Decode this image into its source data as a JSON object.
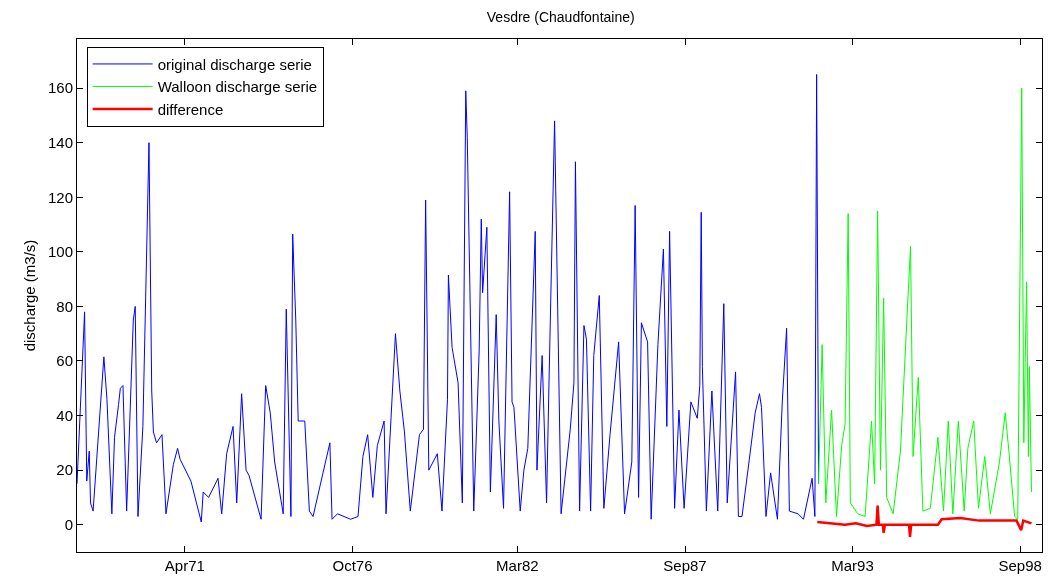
{
  "chart_data": {
    "type": "line",
    "title": "Vesdre (Chaudfontaine)",
    "ylabel": "discharge (m3/s)",
    "xlim": [
      "1967-09-16",
      "1999-05-21"
    ],
    "xticks": [
      {
        "value": "1971-04-01",
        "label": "Apr71"
      },
      {
        "value": "1976-10-01",
        "label": "Oct76"
      },
      {
        "value": "1982-03-01",
        "label": "Mar82"
      },
      {
        "value": "1987-09-01",
        "label": "Sep87"
      },
      {
        "value": "1993-03-01",
        "label": "Mar93"
      },
      {
        "value": "1998-09-01",
        "label": "Sep98"
      }
    ],
    "ylim": [
      -10,
      178
    ],
    "yticks": [
      0,
      20,
      40,
      60,
      80,
      100,
      120,
      140,
      160
    ],
    "legend": "top left",
    "series": [
      {
        "name": "original discharge serie",
        "color": "#0000ff",
        "x": [
          "1967-09-16",
          "1967-12-16",
          "1968-01-11",
          "1968-02-10",
          "1968-02-25",
          "1968-03-27",
          "1968-08-03",
          "1968-09-09",
          "1968-11-07",
          "1968-12-09",
          "1969-01-26",
          "1969-02-17",
          "1969-03-20",
          "1969-05-03",
          "1969-07-22",
          "1969-08-14",
          "1969-09-16",
          "1969-11-14",
          "1970-01-26",
          "1970-02-28",
          "1970-03-20",
          "1970-04-26",
          "1970-07-01",
          "1970-08-18",
          "1970-11-14",
          "1971-01-04",
          "1971-02-03",
          "1971-06-13",
          "1971-10-15",
          "1971-11-07",
          "1972-01-11",
          "1972-05-03",
          "1972-06-16",
          "1972-08-14",
          "1972-10-30",
          "1972-12-13",
          "1973-02-10",
          "1973-04-04",
          "1973-05-10",
          "1973-10-01",
          "1973-11-25",
          "1974-01-19",
          "1974-03-13",
          "1974-06-23",
          "1974-07-30",
          "1974-09-24",
          "1974-10-15",
          "1974-11-21",
          "1974-12-20",
          "1975-03-09",
          "1975-05-03",
          "1975-06-16",
          "1976-01-04",
          "1976-01-30",
          "1976-04-04",
          "1976-09-09",
          "1976-12-06",
          "1977-02-03",
          "1977-04-01",
          "1977-06-02",
          "1977-07-26",
          "1977-10-15",
          "1977-11-07",
          "1978-02-28",
          "1978-04-22",
          "1978-06-16",
          "1978-08-25",
          "1978-12-13",
          "1979-01-30",
          "1979-02-25",
          "1979-04-04",
          "1979-07-15",
          "1979-09-09",
          "1979-11-14",
          "1979-11-25",
          "1980-01-08",
          "1980-03-20",
          "1980-05-10",
          "1980-06-20",
          "1980-07-08",
          "1980-09-24",
          "1980-11-28",
          "1980-12-23",
          "1981-01-08",
          "1981-02-28",
          "1981-04-11",
          "1981-06-20",
          "1981-07-22",
          "1981-09-16",
          "1981-11-28",
          "1981-12-27",
          "1982-01-19",
          "1982-04-04",
          "1982-05-18",
          "1982-07-04",
          "1982-10-01",
          "1982-10-22",
          "1982-12-23",
          "1983-02-14",
          "1983-03-13",
          "1983-05-21",
          "1983-08-07",
          "1983-11-25",
          "1984-01-08",
          "1984-01-26",
          "1984-03-16",
          "1984-05-07",
          "1984-06-06",
          "1984-07-26",
          "1984-09-02",
          "1984-11-07",
          "1985-01-01",
          "1985-03-16",
          "1985-06-27",
          "1985-09-06",
          "1985-12-02",
          "1986-01-11",
          "1986-02-21",
          "1986-03-27",
          "1986-06-09",
          "1986-07-22",
          "1986-10-11",
          "1986-12-16",
          "1987-01-26",
          "1987-02-28",
          "1987-03-13",
          "1987-04-29",
          "1987-06-20",
          "1987-08-21",
          "1987-11-10",
          "1988-01-26",
          "1988-02-25",
          "1988-03-13",
          "1988-03-27",
          "1988-05-14",
          "1988-07-19",
          "1988-09-27",
          "1988-12-09",
          "1989-01-19",
          "1989-04-29",
          "1989-06-02",
          "1989-07-15",
          "1989-10-11",
          "1989-12-20",
          "1990-02-10",
          "1990-03-06",
          "1990-04-29",
          "1990-06-23",
          "1990-09-13",
          "1990-11-10",
          "1991-01-01",
          "1991-02-03",
          "1991-05-18",
          "1991-07-22",
          "1991-11-03",
          "1991-12-06",
          "1991-12-27",
          "1992-01-19"
        ],
        "values": [
          15,
          78,
          16,
          27,
          8,
          5,
          61.5,
          46,
          4,
          32,
          44,
          50,
          51,
          5,
          75,
          80,
          3,
          36,
          140,
          49,
          34,
          30,
          33,
          4,
          22,
          28,
          24,
          16,
          1,
          12,
          10,
          17,
          4,
          26,
          36,
          8,
          48,
          20,
          18,
          2,
          51,
          41,
          23,
          4,
          79,
          3,
          106.5,
          75,
          38,
          38,
          5,
          3,
          30,
          2,
          4,
          2,
          3,
          25,
          33,
          10,
          29,
          38,
          4,
          70,
          49,
          34,
          5,
          33,
          35,
          119,
          20,
          26,
          5,
          46,
          91.5,
          65,
          52,
          8,
          159,
          142,
          5,
          64,
          112,
          85,
          109,
          12,
          77,
          38,
          6,
          122,
          45,
          43,
          5,
          20,
          28,
          107.5,
          20,
          62,
          8,
          49,
          148,
          4,
          35,
          52,
          133,
          5,
          73,
          68,
          5,
          62,
          84,
          6,
          33,
          67,
          4,
          23,
          117,
          10,
          74,
          67,
          2,
          66,
          101,
          36,
          107.5,
          86,
          6,
          42,
          6,
          45,
          39,
          51,
          114.5,
          58,
          5,
          49,
          5,
          81,
          8,
          56,
          3,
          3,
          24,
          41,
          48,
          43,
          3,
          19,
          2,
          45,
          72,
          5,
          4,
          2,
          17,
          3,
          165,
          15
        ]
      },
      {
        "name": "Walloon discharge serie",
        "color": "#00ff00",
        "x": [
          "1992-01-19",
          "1992-03-02",
          "1992-04-15",
          "1992-06-23",
          "1992-08-21",
          "1992-10-22",
          "1992-12-02",
          "1993-01-08",
          "1993-02-03",
          "1993-05-03",
          "1993-07-30",
          "1993-10-15",
          "1993-11-21",
          "1993-12-27",
          "1994-01-30",
          "1994-03-09",
          "1994-04-15",
          "1994-07-01",
          "1994-09-27",
          "1994-12-27",
          "1995-01-26",
          "1995-02-25",
          "1995-04-29",
          "1995-06-23",
          "1995-09-20",
          "1995-12-20",
          "1996-02-25",
          "1996-04-22",
          "1996-06-16",
          "1996-08-21",
          "1996-10-30",
          "1996-12-13",
          "1997-02-21",
          "1997-04-19",
          "1997-07-04",
          "1997-09-09",
          "1997-12-27",
          "1998-03-06",
          "1998-04-19",
          "1998-06-27",
          "1998-08-03",
          "1998-09-20",
          "1998-10-15",
          "1998-11-17",
          "1998-12-09",
          "1998-12-20",
          "1999-01-15"
        ],
        "values": [
          15,
          66,
          8,
          42,
          3,
          29,
          37,
          114,
          8,
          4,
          3,
          38,
          15,
          115,
          20,
          83,
          10,
          4,
          27,
          84,
          102,
          25,
          54,
          5,
          6,
          32,
          5,
          38,
          4,
          38,
          5,
          28,
          38,
          6,
          25,
          4,
          23,
          41,
          27,
          3,
          2,
          160,
          30,
          89,
          25,
          58,
          12
        ]
      },
      {
        "name": "difference",
        "color": "#ff0000",
        "x": [
          "1992-01-04",
          "1992-06-02",
          "1992-11-28",
          "1993-04-11",
          "1993-08-21",
          "1993-12-13",
          "1993-12-27",
          "1994-01-11",
          "1994-02-28",
          "1994-03-09",
          "1994-03-24",
          "1995-01-08",
          "1995-01-19",
          "1995-02-03",
          "1995-12-20",
          "1996-02-03",
          "1996-09-13",
          "1997-04-26",
          "1997-12-06",
          "1998-07-19",
          "1998-09-13",
          "1998-10-08",
          "1999-01-15"
        ],
        "values": [
          1,
          0.5,
          0,
          0.5,
          -0.5,
          0,
          7,
          0,
          0,
          -3,
          0,
          0,
          -4.5,
          0,
          0,
          2,
          2.5,
          1.5,
          1.5,
          1.5,
          -2,
          1.5,
          0.5
        ]
      }
    ]
  }
}
